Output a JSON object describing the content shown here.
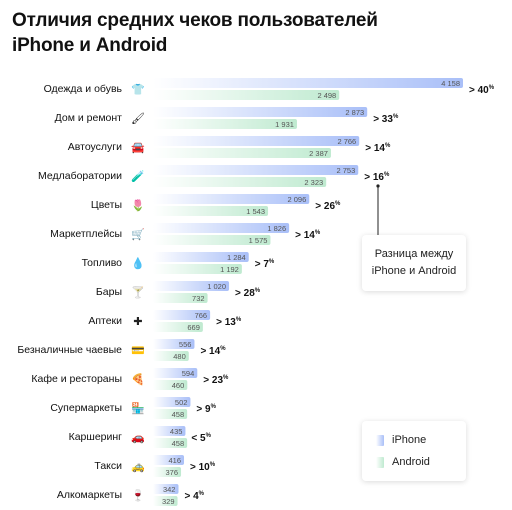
{
  "title": "Отличия средних чеков пользователей iPhone и Android",
  "colors": {
    "iphone_start": "#ffffff",
    "iphone_end": "#a9bff8",
    "android_start": "#ffffff",
    "android_end": "#bfead0",
    "text": "#111111",
    "value_text": "#555555"
  },
  "callout": {
    "line1": "Разница между",
    "line2": "iPhone и Android"
  },
  "legend": {
    "iphone": "iPhone",
    "android": "Android"
  },
  "chart_data": {
    "type": "bar",
    "orientation": "horizontal",
    "title": "Отличия средних чеков пользователей iPhone и Android",
    "categories": [
      {
        "label": "Одежда и обувь",
        "icon": "tshirt-icon",
        "glyph": "👕"
      },
      {
        "label": "Дом и ремонт",
        "icon": "paint-roller-icon",
        "glyph": "🖌"
      },
      {
        "label": "Автоуслуги",
        "icon": "car-icon",
        "glyph": "🚘"
      },
      {
        "label": "Медлаборатории",
        "icon": "test-tube-icon",
        "glyph": "🧪"
      },
      {
        "label": "Цветы",
        "icon": "flower-icon",
        "glyph": "🌷"
      },
      {
        "label": "Маркетплейсы",
        "icon": "cart-icon",
        "glyph": "🛒"
      },
      {
        "label": "Топливо",
        "icon": "fuel-drop-icon",
        "glyph": "💧"
      },
      {
        "label": "Бары",
        "icon": "cocktail-icon",
        "glyph": "🍸"
      },
      {
        "label": "Аптеки",
        "icon": "pharmacy-cross-icon",
        "glyph": "✚"
      },
      {
        "label": "Безналичные чаевые",
        "icon": "card-icon",
        "glyph": "💳"
      },
      {
        "label": "Кафе и рестораны",
        "icon": "pizza-icon",
        "glyph": "🍕"
      },
      {
        "label": "Супермаркеты",
        "icon": "store-icon",
        "glyph": "🏪"
      },
      {
        "label": "Каршеринг",
        "icon": "car-sharing-icon",
        "glyph": "🚗"
      },
      {
        "label": "Такси",
        "icon": "taxi-icon",
        "glyph": "🚕"
      },
      {
        "label": "Алкомаркеты",
        "icon": "wine-glass-icon",
        "glyph": "🍷"
      }
    ],
    "series": [
      {
        "name": "iPhone",
        "values": [
          4158,
          2873,
          2766,
          2753,
          2096,
          1826,
          1284,
          1020,
          766,
          556,
          594,
          502,
          435,
          416,
          342
        ],
        "labels": [
          "4 158",
          "2 873",
          "2 766",
          "2 753",
          "2 096",
          "1 826",
          "1 284",
          "1 020",
          "766",
          "556",
          "594",
          "502",
          "435",
          "416",
          "342"
        ]
      },
      {
        "name": "Android",
        "values": [
          2498,
          1931,
          2387,
          2323,
          1543,
          1575,
          1192,
          732,
          669,
          480,
          460,
          458,
          458,
          376,
          329
        ],
        "labels": [
          "2 498",
          "1 931",
          "2 387",
          "2 323",
          "1 543",
          "1 575",
          "1 192",
          "732",
          "669",
          "480",
          "460",
          "458",
          "458",
          "376",
          "329"
        ]
      }
    ],
    "differences": [
      {
        "prefix": "> ",
        "value": "40",
        "unit": "%"
      },
      {
        "prefix": "> ",
        "value": "33",
        "unit": "%"
      },
      {
        "prefix": "> ",
        "value": "14",
        "unit": "%"
      },
      {
        "prefix": "> ",
        "value": "16",
        "unit": "%"
      },
      {
        "prefix": "> ",
        "value": "26",
        "unit": "%"
      },
      {
        "prefix": "> ",
        "value": "14",
        "unit": "%"
      },
      {
        "prefix": "> ",
        "value": "7",
        "unit": "%"
      },
      {
        "prefix": "> ",
        "value": "28",
        "unit": "%"
      },
      {
        "prefix": "> ",
        "value": "13",
        "unit": "%"
      },
      {
        "prefix": "> ",
        "value": "14",
        "unit": "%"
      },
      {
        "prefix": "> ",
        "value": "23",
        "unit": "%"
      },
      {
        "prefix": "> ",
        "value": "9",
        "unit": "%"
      },
      {
        "prefix": "< ",
        "value": "5",
        "unit": "%"
      },
      {
        "prefix": "> ",
        "value": "10",
        "unit": "%"
      },
      {
        "prefix": "> ",
        "value": "4",
        "unit": "%"
      }
    ],
    "xlim": [
      0,
      4158
    ],
    "grid": false,
    "legend_position": "bottom-right"
  }
}
